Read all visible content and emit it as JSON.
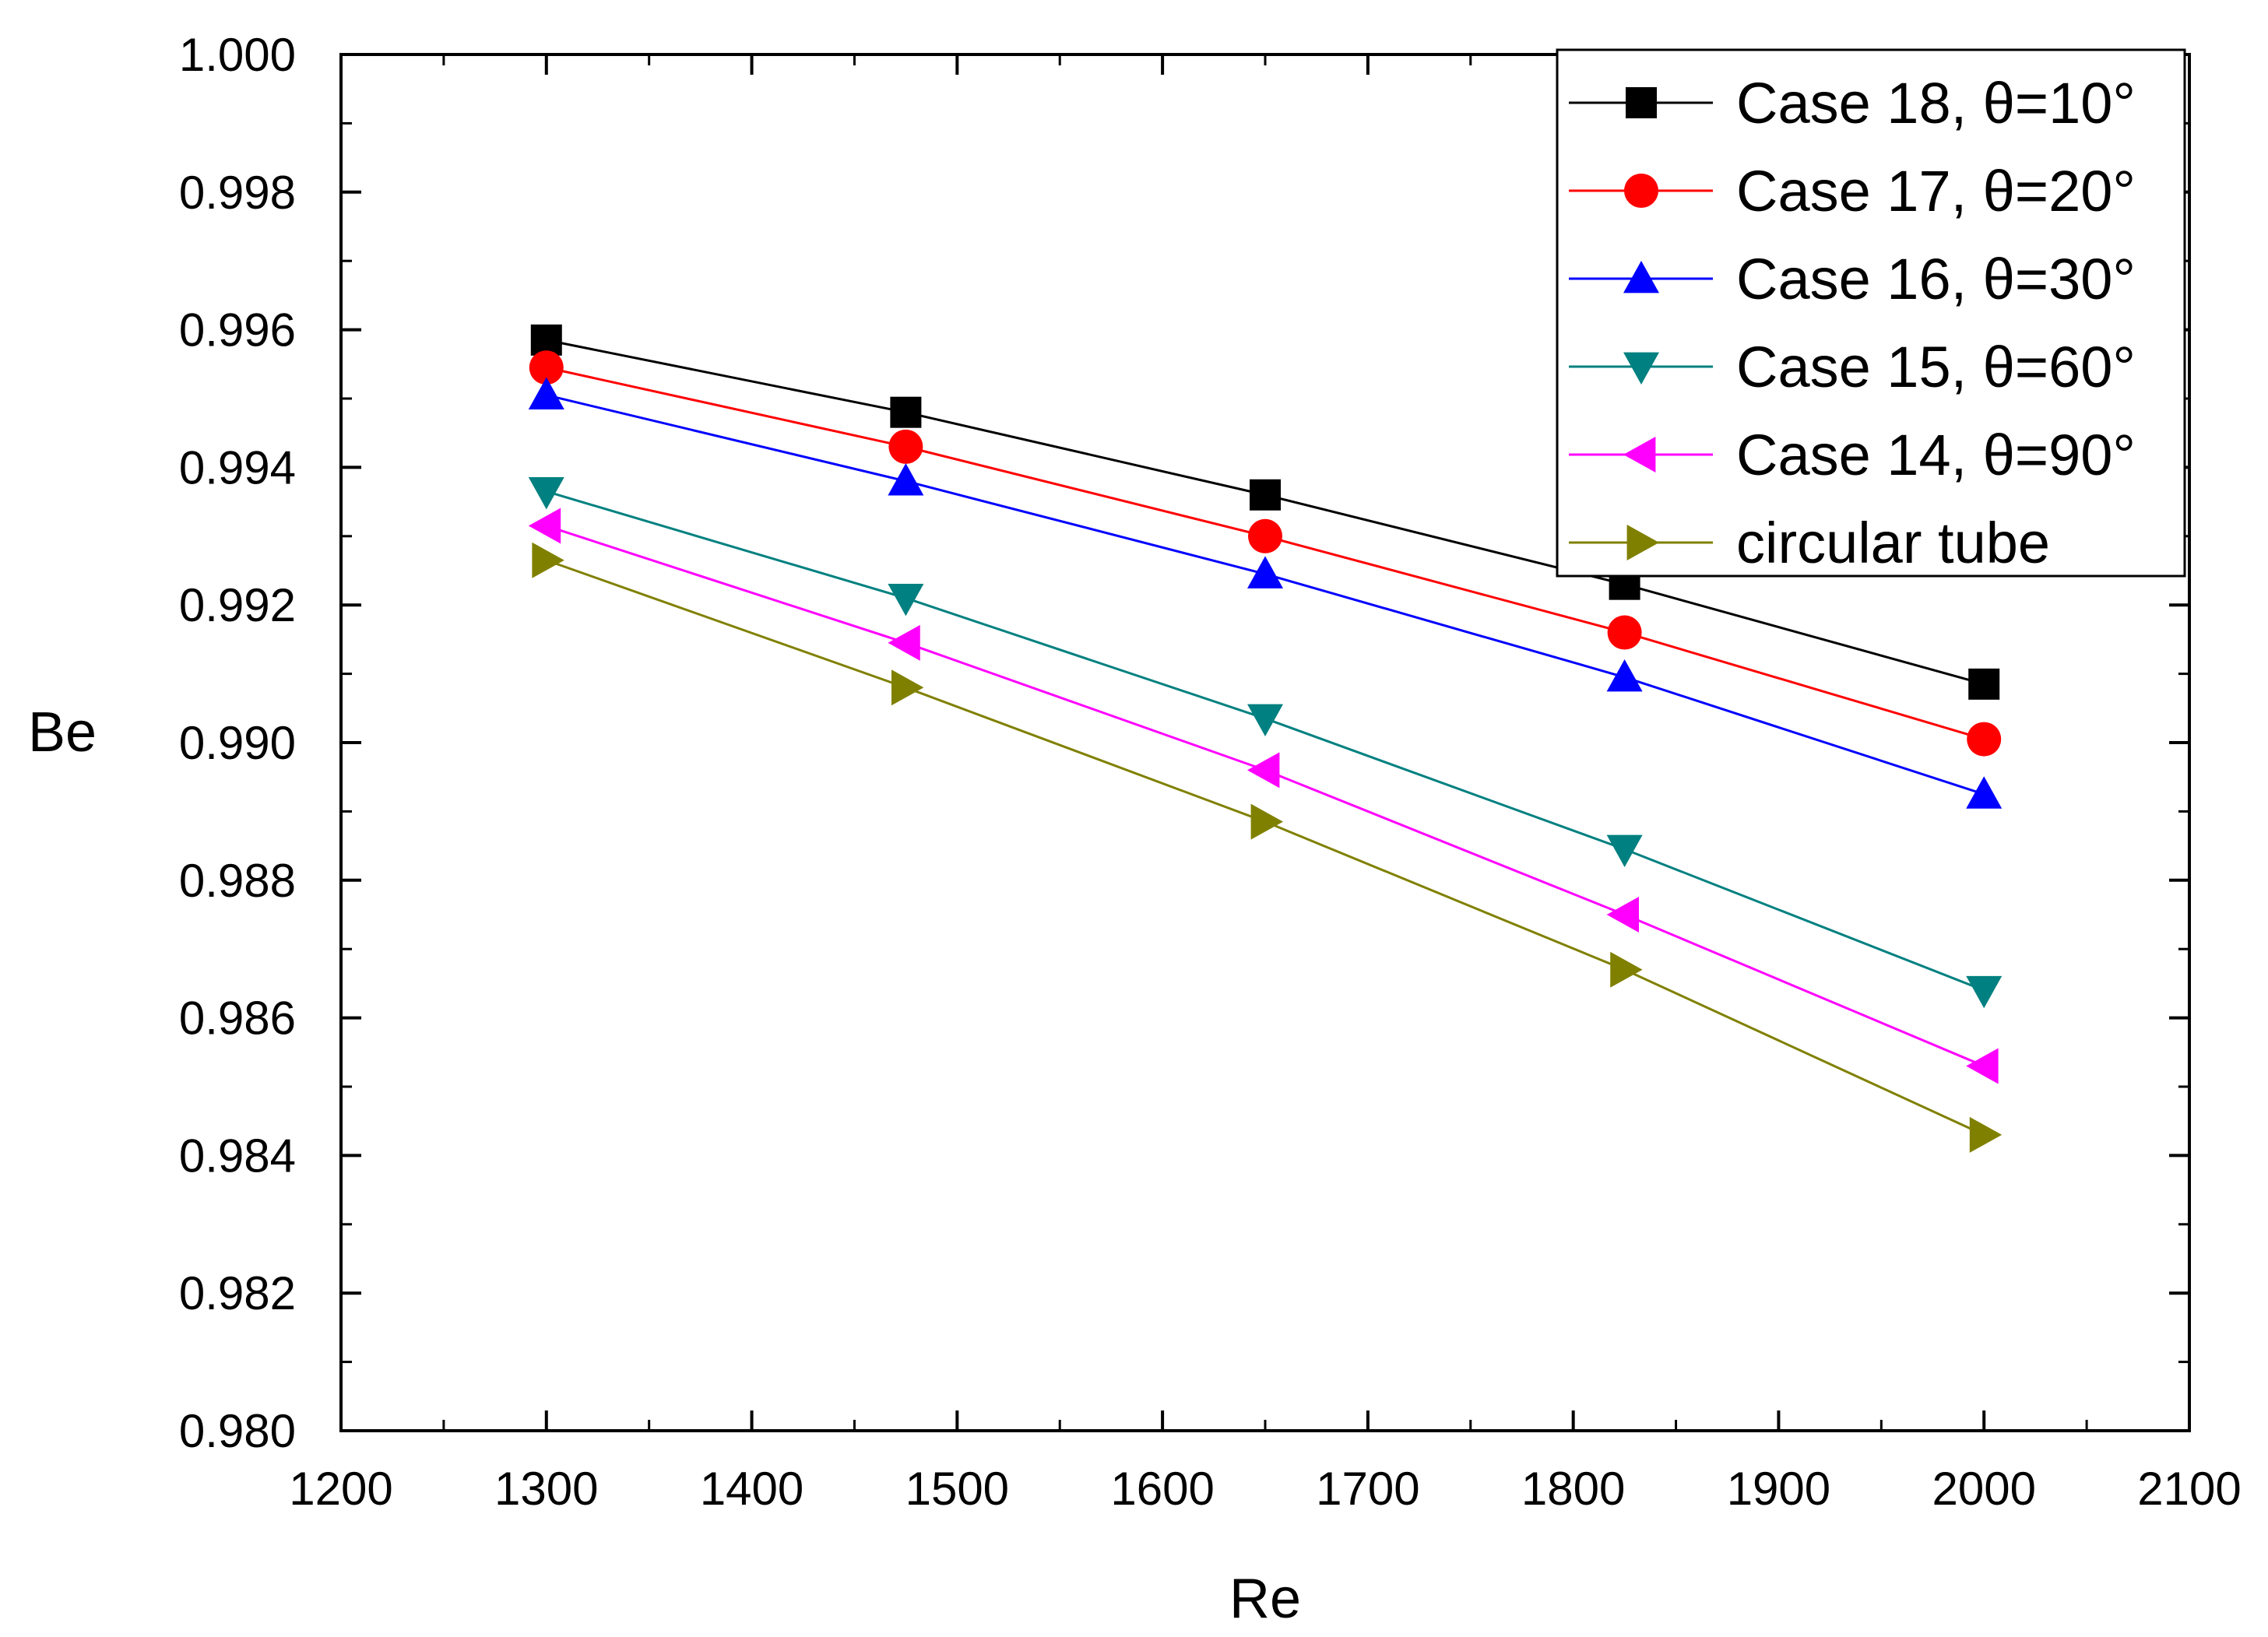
{
  "chart_data": {
    "type": "line",
    "xlabel": "Re",
    "ylabel": "Be",
    "xlim": [
      1200,
      2100
    ],
    "ylim": [
      0.98,
      1.0
    ],
    "xticks": [
      1200,
      1300,
      1400,
      1500,
      1600,
      1700,
      1800,
      1900,
      2000,
      2100
    ],
    "xtick_labels": [
      "1200",
      "1300",
      "1400",
      "1500",
      "1600",
      "1700",
      "1800",
      "1900",
      "2000",
      "2100"
    ],
    "yticks": [
      0.98,
      0.982,
      0.984,
      0.986,
      0.988,
      0.99,
      0.992,
      0.994,
      0.996,
      0.998,
      1.0
    ],
    "ytick_labels": [
      "0.980",
      "0.982",
      "0.984",
      "0.986",
      "0.988",
      "0.990",
      "0.992",
      "0.994",
      "0.996",
      "0.998",
      "1.000"
    ],
    "x": [
      1300,
      1475,
      1650,
      1825,
      2000
    ],
    "legend_position": "top-right",
    "grid": false,
    "series": [
      {
        "name": "Case 18, θ=10°",
        "color": "#000000",
        "marker": "square",
        "values": [
          0.99585,
          0.9948,
          0.9936,
          0.9923,
          0.99085
        ]
      },
      {
        "name": "Case 17, θ=20°",
        "color": "#ff0000",
        "marker": "circle",
        "values": [
          0.99545,
          0.9943,
          0.993,
          0.9916,
          0.99005
        ]
      },
      {
        "name": "Case 16, θ=30°",
        "color": "#0000ff",
        "marker": "triangle-up",
        "values": [
          0.99505,
          0.9938,
          0.99245,
          0.99095,
          0.98925
        ]
      },
      {
        "name": "Case 15, θ=60°",
        "color": "#008080",
        "marker": "triangle-down",
        "values": [
          0.99365,
          0.9921,
          0.99035,
          0.98845,
          0.9864
        ]
      },
      {
        "name": "Case 14, θ=90°",
        "color": "#ff00ff",
        "marker": "triangle-left",
        "values": [
          0.99315,
          0.99145,
          0.9896,
          0.9875,
          0.9853
        ]
      },
      {
        "name": "circular tube",
        "color": "#808000",
        "marker": "triangle-right",
        "values": [
          0.99265,
          0.9908,
          0.98885,
          0.9867,
          0.9843
        ]
      }
    ]
  }
}
